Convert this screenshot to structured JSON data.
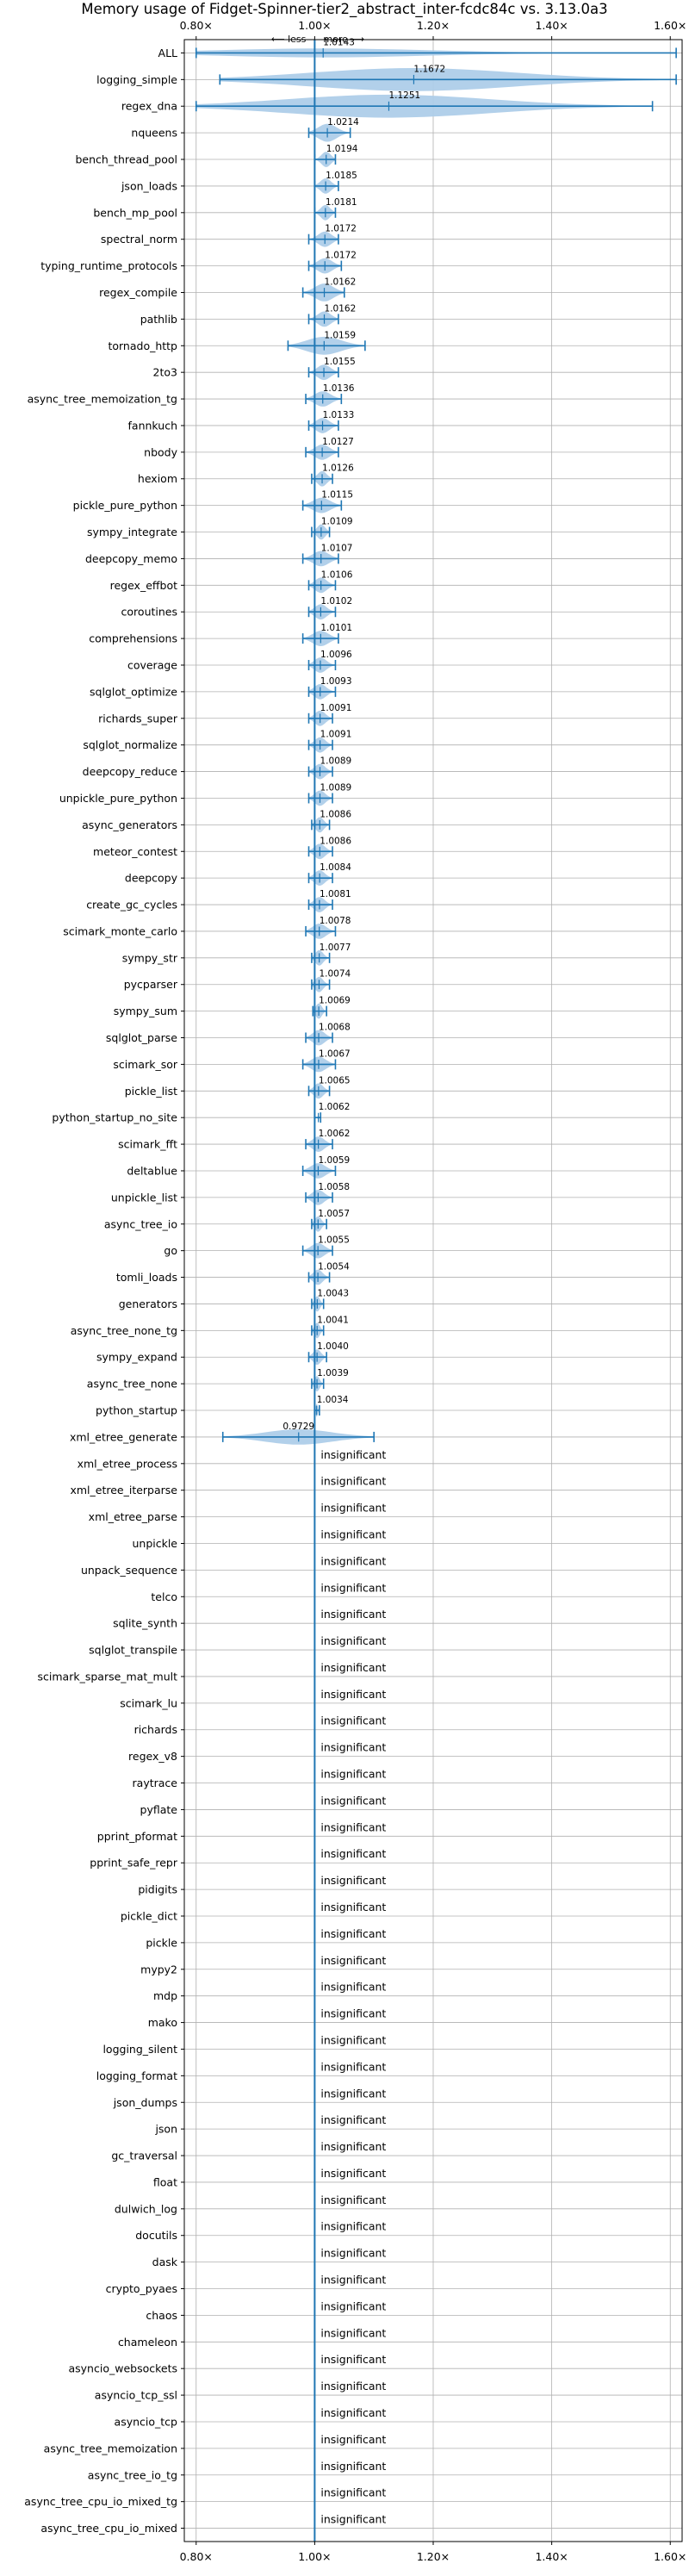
{
  "chart_data": {
    "type": "violin",
    "title": "Memory usage of Fidget-Spinner-tier2_abstract_inter-fcdc84c vs. 3.13.0a3",
    "direction_note": {
      "less": "less",
      "more": "more",
      "arrow_left": "⟵",
      "arrow_right": "⟶"
    },
    "xlim": [
      0.78,
      1.62
    ],
    "xticks": [
      0.8,
      1.0,
      1.2,
      1.4,
      1.6
    ],
    "xtick_labels": [
      "0.80×",
      "1.00×",
      "1.20×",
      "1.40×",
      "1.60×"
    ],
    "reference_line": 1.0,
    "insignificant_label": "insignificant",
    "benchmarks": [
      {
        "name": "ALL",
        "value": 1.0143,
        "label": "1.0143",
        "min": 0.8,
        "max": 1.61,
        "width": 0.35
      },
      {
        "name": "logging_simple",
        "value": 1.1672,
        "label": "1.1672",
        "min": 0.84,
        "max": 1.61,
        "width": 0.9
      },
      {
        "name": "regex_dna",
        "value": 1.1251,
        "label": "1.1251",
        "min": 0.8,
        "max": 1.57,
        "width": 0.9
      },
      {
        "name": "nqueens",
        "value": 1.0214,
        "label": "1.0214",
        "min": 0.99,
        "max": 1.06,
        "width": 0.7
      },
      {
        "name": "bench_thread_pool",
        "value": 1.0194,
        "label": "1.0194",
        "min": 1.0,
        "max": 1.035,
        "width": 0.6
      },
      {
        "name": "json_loads",
        "value": 1.0185,
        "label": "1.0185",
        "min": 1.0,
        "max": 1.04,
        "width": 0.6
      },
      {
        "name": "bench_mp_pool",
        "value": 1.0181,
        "label": "1.0181",
        "min": 1.0,
        "max": 1.035,
        "width": 0.6
      },
      {
        "name": "spectral_norm",
        "value": 1.0172,
        "label": "1.0172",
        "min": 0.99,
        "max": 1.04,
        "width": 0.6
      },
      {
        "name": "typing_runtime_protocols",
        "value": 1.0172,
        "label": "1.0172",
        "min": 0.99,
        "max": 1.045,
        "width": 0.6
      },
      {
        "name": "regex_compile",
        "value": 1.0162,
        "label": "1.0162",
        "min": 0.98,
        "max": 1.05,
        "width": 0.7
      },
      {
        "name": "pathlib",
        "value": 1.0162,
        "label": "1.0162",
        "min": 0.99,
        "max": 1.04,
        "width": 0.6
      },
      {
        "name": "tornado_http",
        "value": 1.0159,
        "label": "1.0159",
        "min": 0.955,
        "max": 1.085,
        "width": 0.7
      },
      {
        "name": "2to3",
        "value": 1.0155,
        "label": "1.0155",
        "min": 0.99,
        "max": 1.04,
        "width": 0.6
      },
      {
        "name": "async_tree_memoization_tg",
        "value": 1.0136,
        "label": "1.0136",
        "min": 0.985,
        "max": 1.045,
        "width": 0.6
      },
      {
        "name": "fannkuch",
        "value": 1.0133,
        "label": "1.0133",
        "min": 0.99,
        "max": 1.04,
        "width": 0.6
      },
      {
        "name": "nbody",
        "value": 1.0127,
        "label": "1.0127",
        "min": 0.985,
        "max": 1.04,
        "width": 0.6
      },
      {
        "name": "hexiom",
        "value": 1.0126,
        "label": "1.0126",
        "min": 0.995,
        "max": 1.03,
        "width": 0.6
      },
      {
        "name": "pickle_pure_python",
        "value": 1.0115,
        "label": "1.0115",
        "min": 0.98,
        "max": 1.045,
        "width": 0.6
      },
      {
        "name": "sympy_integrate",
        "value": 1.0109,
        "label": "1.0109",
        "min": 0.995,
        "max": 1.025,
        "width": 0.6
      },
      {
        "name": "deepcopy_memo",
        "value": 1.0107,
        "label": "1.0107",
        "min": 0.98,
        "max": 1.04,
        "width": 0.6
      },
      {
        "name": "regex_effbot",
        "value": 1.0106,
        "label": "1.0106",
        "min": 0.99,
        "max": 1.035,
        "width": 0.6
      },
      {
        "name": "coroutines",
        "value": 1.0102,
        "label": "1.0102",
        "min": 0.99,
        "max": 1.035,
        "width": 0.6
      },
      {
        "name": "comprehensions",
        "value": 1.0101,
        "label": "1.0101",
        "min": 0.98,
        "max": 1.04,
        "width": 0.6
      },
      {
        "name": "coverage",
        "value": 1.0096,
        "label": "1.0096",
        "min": 0.99,
        "max": 1.035,
        "width": 0.6
      },
      {
        "name": "sqlglot_optimize",
        "value": 1.0093,
        "label": "1.0093",
        "min": 0.99,
        "max": 1.035,
        "width": 0.6
      },
      {
        "name": "richards_super",
        "value": 1.0091,
        "label": "1.0091",
        "min": 0.99,
        "max": 1.03,
        "width": 0.6
      },
      {
        "name": "sqlglot_normalize",
        "value": 1.0091,
        "label": "1.0091",
        "min": 0.99,
        "max": 1.03,
        "width": 0.6
      },
      {
        "name": "deepcopy_reduce",
        "value": 1.0089,
        "label": "1.0089",
        "min": 0.99,
        "max": 1.03,
        "width": 0.6
      },
      {
        "name": "unpickle_pure_python",
        "value": 1.0089,
        "label": "1.0089",
        "min": 0.99,
        "max": 1.03,
        "width": 0.6
      },
      {
        "name": "async_generators",
        "value": 1.0086,
        "label": "1.0086",
        "min": 0.995,
        "max": 1.025,
        "width": 0.6
      },
      {
        "name": "meteor_contest",
        "value": 1.0086,
        "label": "1.0086",
        "min": 0.99,
        "max": 1.03,
        "width": 0.6
      },
      {
        "name": "deepcopy",
        "value": 1.0084,
        "label": "1.0084",
        "min": 0.99,
        "max": 1.03,
        "width": 0.6
      },
      {
        "name": "create_gc_cycles",
        "value": 1.0081,
        "label": "1.0081",
        "min": 0.99,
        "max": 1.03,
        "width": 0.6
      },
      {
        "name": "scimark_monte_carlo",
        "value": 1.0078,
        "label": "1.0078",
        "min": 0.985,
        "max": 1.035,
        "width": 0.6
      },
      {
        "name": "sympy_str",
        "value": 1.0077,
        "label": "1.0077",
        "min": 0.995,
        "max": 1.025,
        "width": 0.6
      },
      {
        "name": "pycparser",
        "value": 1.0074,
        "label": "1.0074",
        "min": 0.995,
        "max": 1.025,
        "width": 0.6
      },
      {
        "name": "sympy_sum",
        "value": 1.0069,
        "label": "1.0069",
        "min": 0.997,
        "max": 1.02,
        "width": 0.6
      },
      {
        "name": "sqlglot_parse",
        "value": 1.0068,
        "label": "1.0068",
        "min": 0.985,
        "max": 1.03,
        "width": 0.6
      },
      {
        "name": "scimark_sor",
        "value": 1.0067,
        "label": "1.0067",
        "min": 0.98,
        "max": 1.035,
        "width": 0.6
      },
      {
        "name": "pickle_list",
        "value": 1.0065,
        "label": "1.0065",
        "min": 0.99,
        "max": 1.025,
        "width": 0.6
      },
      {
        "name": "python_startup_no_site",
        "value": 1.0062,
        "label": "1.0062",
        "min": 1.0,
        "max": 1.01,
        "width": 0.1
      },
      {
        "name": "scimark_fft",
        "value": 1.0062,
        "label": "1.0062",
        "min": 0.985,
        "max": 1.03,
        "width": 0.6
      },
      {
        "name": "deltablue",
        "value": 1.0059,
        "label": "1.0059",
        "min": 0.98,
        "max": 1.035,
        "width": 0.6
      },
      {
        "name": "unpickle_list",
        "value": 1.0058,
        "label": "1.0058",
        "min": 0.985,
        "max": 1.03,
        "width": 0.6
      },
      {
        "name": "async_tree_io",
        "value": 1.0057,
        "label": "1.0057",
        "min": 0.995,
        "max": 1.02,
        "width": 0.6
      },
      {
        "name": "go",
        "value": 1.0055,
        "label": "1.0055",
        "min": 0.98,
        "max": 1.03,
        "width": 0.6
      },
      {
        "name": "tomli_loads",
        "value": 1.0054,
        "label": "1.0054",
        "min": 0.99,
        "max": 1.025,
        "width": 0.6
      },
      {
        "name": "generators",
        "value": 1.0043,
        "label": "1.0043",
        "min": 0.995,
        "max": 1.015,
        "width": 0.6
      },
      {
        "name": "async_tree_none_tg",
        "value": 1.0041,
        "label": "1.0041",
        "min": 0.995,
        "max": 1.015,
        "width": 0.6
      },
      {
        "name": "sympy_expand",
        "value": 1.004,
        "label": "1.0040",
        "min": 0.99,
        "max": 1.02,
        "width": 0.6
      },
      {
        "name": "async_tree_none",
        "value": 1.0039,
        "label": "1.0039",
        "min": 0.995,
        "max": 1.015,
        "width": 0.6
      },
      {
        "name": "python_startup",
        "value": 1.0034,
        "label": "1.0034",
        "min": 1.0,
        "max": 1.008,
        "width": 0.5
      },
      {
        "name": "xml_etree_generate",
        "value": 0.9729,
        "label": "0.9729",
        "min": 0.845,
        "max": 1.1,
        "width": 0.6
      },
      {
        "name": "xml_etree_process",
        "insignificant": true
      },
      {
        "name": "xml_etree_iterparse",
        "insignificant": true
      },
      {
        "name": "xml_etree_parse",
        "insignificant": true
      },
      {
        "name": "unpickle",
        "insignificant": true
      },
      {
        "name": "unpack_sequence",
        "insignificant": true
      },
      {
        "name": "telco",
        "insignificant": true
      },
      {
        "name": "sqlite_synth",
        "insignificant": true
      },
      {
        "name": "sqlglot_transpile",
        "insignificant": true
      },
      {
        "name": "scimark_sparse_mat_mult",
        "insignificant": true
      },
      {
        "name": "scimark_lu",
        "insignificant": true
      },
      {
        "name": "richards",
        "insignificant": true
      },
      {
        "name": "regex_v8",
        "insignificant": true
      },
      {
        "name": "raytrace",
        "insignificant": true
      },
      {
        "name": "pyflate",
        "insignificant": true
      },
      {
        "name": "pprint_pformat",
        "insignificant": true
      },
      {
        "name": "pprint_safe_repr",
        "insignificant": true
      },
      {
        "name": "pidigits",
        "insignificant": true
      },
      {
        "name": "pickle_dict",
        "insignificant": true
      },
      {
        "name": "pickle",
        "insignificant": true
      },
      {
        "name": "mypy2",
        "insignificant": true
      },
      {
        "name": "mdp",
        "insignificant": true
      },
      {
        "name": "mako",
        "insignificant": true
      },
      {
        "name": "logging_silent",
        "insignificant": true
      },
      {
        "name": "logging_format",
        "insignificant": true
      },
      {
        "name": "json_dumps",
        "insignificant": true
      },
      {
        "name": "json",
        "insignificant": true
      },
      {
        "name": "gc_traversal",
        "insignificant": true
      },
      {
        "name": "float",
        "insignificant": true
      },
      {
        "name": "dulwich_log",
        "insignificant": true
      },
      {
        "name": "docutils",
        "insignificant": true
      },
      {
        "name": "dask",
        "insignificant": true
      },
      {
        "name": "crypto_pyaes",
        "insignificant": true
      },
      {
        "name": "chaos",
        "insignificant": true
      },
      {
        "name": "chameleon",
        "insignificant": true
      },
      {
        "name": "asyncio_websockets",
        "insignificant": true
      },
      {
        "name": "asyncio_tcp_ssl",
        "insignificant": true
      },
      {
        "name": "asyncio_tcp",
        "insignificant": true
      },
      {
        "name": "async_tree_memoization",
        "insignificant": true
      },
      {
        "name": "async_tree_io_tg",
        "insignificant": true
      },
      {
        "name": "async_tree_cpu_io_mixed_tg",
        "insignificant": true
      },
      {
        "name": "async_tree_cpu_io_mixed",
        "insignificant": true
      }
    ],
    "colors": {
      "violin": "#aecde9",
      "line": "#1f77b4",
      "grid": "#b0b0b0",
      "axis": "#000000"
    }
  }
}
